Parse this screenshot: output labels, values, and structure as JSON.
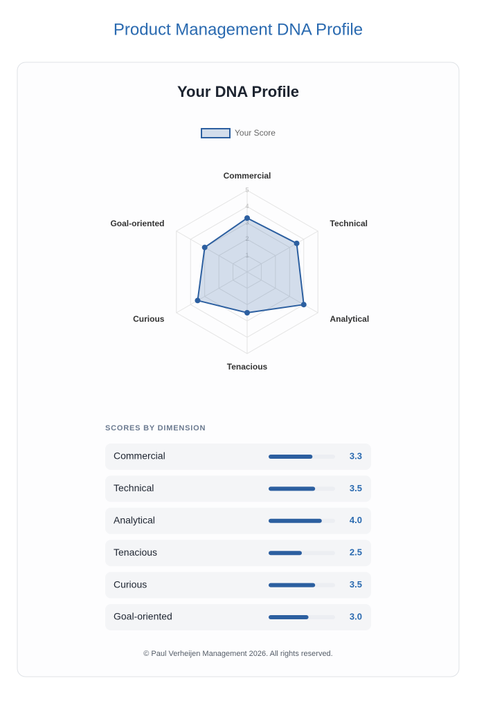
{
  "header": {
    "title": "Product Management DNA Profile"
  },
  "chart_data": {
    "type": "radar",
    "title": "Your DNA Profile",
    "categories": [
      "Commercial",
      "Technical",
      "Analytical",
      "Tenacious",
      "Curious",
      "Goal-oriented"
    ],
    "series": [
      {
        "name": "Your Score",
        "color": "#2c5fa0",
        "values": [
          3.3,
          3.5,
          4.0,
          2.5,
          3.5,
          3.0
        ],
        "value_labels": [
          "3.3",
          "3.5",
          "4.0",
          "2.5",
          "3.5",
          "3.0"
        ]
      }
    ],
    "rlim": [
      0,
      5
    ],
    "rticks": [
      1,
      2,
      3,
      4,
      5
    ],
    "legend": "top"
  },
  "scores": {
    "heading": "SCORES BY DIMENSION"
  },
  "footer": {
    "text": "© Paul Verheijen Management 2026. All rights reserved."
  }
}
